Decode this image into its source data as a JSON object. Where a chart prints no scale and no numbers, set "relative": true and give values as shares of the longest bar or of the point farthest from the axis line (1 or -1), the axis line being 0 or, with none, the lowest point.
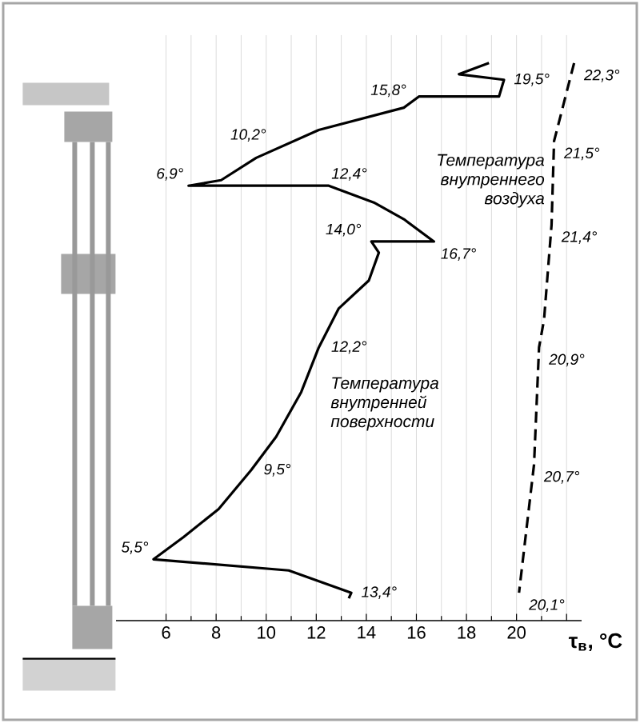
{
  "chart_data": {
    "type": "line",
    "relative": true,
    "xlabel": "τ$_{в}$, °C",
    "xlim": [
      4,
      22.6
    ],
    "xticks": [
      6,
      8,
      10,
      12,
      14,
      16,
      18,
      20,
      {
        "value": 22,
        "label": null
      }
    ],
    "grid": "x",
    "series": [
      {
        "name": "Температура внутренней поверхности",
        "color": "#000000",
        "line_style": "solid",
        "x": [
          18.9,
          17.7,
          19.5,
          19.3,
          16.1,
          15.5,
          12.1,
          9.6,
          8.2,
          6.9,
          12.5,
          14.3,
          15.5,
          16.7,
          14.2,
          14.5,
          14.1,
          12.9,
          12.1,
          11.4,
          10.4,
          9.4,
          8.1,
          6.7,
          5.5,
          10.9,
          13.4,
          13.3
        ],
        "values": [
          1.0,
          0.98,
          0.97,
          0.94,
          0.94,
          0.92,
          0.88,
          0.83,
          0.79,
          0.78,
          0.78,
          0.75,
          0.72,
          0.68,
          0.68,
          0.66,
          0.61,
          0.56,
          0.49,
          0.41,
          0.33,
          0.27,
          0.2,
          0.15,
          0.11,
          0.09,
          0.05,
          0.04
        ]
      },
      {
        "name": "Температура внутреннего воздуха",
        "color": "#000000",
        "line_style": "dashed",
        "x": [
          22.3,
          21.5,
          21.4,
          21.1,
          20.9,
          20.7,
          20.1
        ],
        "values": [
          1.0,
          0.86,
          0.71,
          0.54,
          0.49,
          0.28,
          0.05
        ]
      }
    ],
    "annotations": [
      {
        "text": "15,8°",
        "x": 15.8,
        "y": 0.93
      },
      {
        "text": "19,5°",
        "x": 19.5,
        "y": 0.97
      },
      {
        "text": "10,2°",
        "x": 10.2,
        "y": 0.85
      },
      {
        "text": "6,9°",
        "x": 6.9,
        "y": 0.78
      },
      {
        "text": "12,4°",
        "x": 12.4,
        "y": 0.78
      },
      {
        "text": "14,0°",
        "x": 14.0,
        "y": 0.68
      },
      {
        "text": "16,7°",
        "x": 16.7,
        "y": 0.68
      },
      {
        "text": "12,2°",
        "x": 12.2,
        "y": 0.49
      },
      {
        "text": "9,5°",
        "x": 9.5,
        "y": 0.27
      },
      {
        "text": "5,5°",
        "x": 5.5,
        "y": 0.11
      },
      {
        "text": "13,4°",
        "x": 13.4,
        "y": 0.05
      },
      {
        "text": "22,3°",
        "x": 22.3,
        "y": 1.0
      },
      {
        "text": "21,5°",
        "x": 21.5,
        "y": 0.86
      },
      {
        "text": "21,4°",
        "x": 21.4,
        "y": 0.71
      },
      {
        "text": "20,9°",
        "x": 20.9,
        "y": 0.49
      },
      {
        "text": "20,7°",
        "x": 20.7,
        "y": 0.28
      },
      {
        "text": "20,1°",
        "x": 20.1,
        "y": 0.05
      }
    ]
  }
}
